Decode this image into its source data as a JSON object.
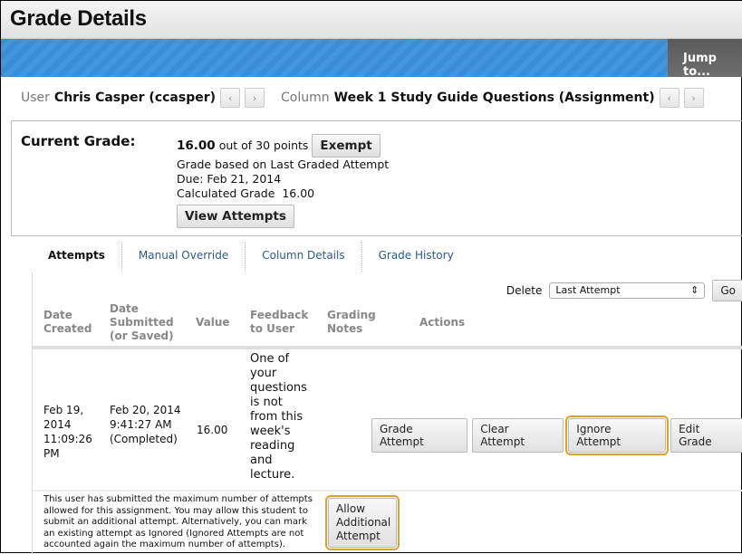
{
  "header": {
    "title": "Grade Details",
    "jump_label": "Jump to..."
  },
  "selector": {
    "user_label": "User",
    "user_value": "Chris Casper (ccasper)",
    "column_label": "Column",
    "column_value": "Week 1 Study Guide Questions (Assignment)",
    "prev": "‹",
    "next": "›"
  },
  "current_grade": {
    "label": "Current Grade:",
    "score": "16.00",
    "out_of": "out of 30 points",
    "exempt": "Exempt",
    "based_on": "Grade based on Last Graded Attempt",
    "due": "Due: Feb 21, 2014",
    "calculated": "Calculated Grade  16.00",
    "view_attempts": "View Attempts"
  },
  "tabs": [
    {
      "label": "Attempts"
    },
    {
      "label": "Manual Override"
    },
    {
      "label": "Column Details"
    },
    {
      "label": "Grade History"
    }
  ],
  "delete": {
    "label": "Delete",
    "selected": "Last Attempt",
    "go": "Go"
  },
  "columns": [
    "Date Created",
    "Date Submitted (or Saved)",
    "Value",
    "Feedback to User",
    "Grading Notes",
    "Actions"
  ],
  "row": {
    "created": "Feb 19, 2014 11:09:26 PM",
    "submitted": "Feb 20, 2014 9:41:27 AM (Completed)",
    "value": "16.00",
    "feedback": "One of your questions is not from this week's reading and lecture.",
    "actions": [
      "Grade Attempt",
      "Clear Attempt",
      "Ignore Attempt",
      "Edit Grade"
    ]
  },
  "notice": {
    "text": "This user has submitted the maximum number of attempts allowed for this assignment. You may allow this student to submit an additional attempt. Alternatively, you can mark an existing attempt as Ignored (Ignored Attempts are not accounted again the maximum number of attempts).",
    "button": "Allow Additional Attempt"
  },
  "colors": {
    "accent_bar": "#3a8ed8",
    "highlight": "#e0a030"
  }
}
